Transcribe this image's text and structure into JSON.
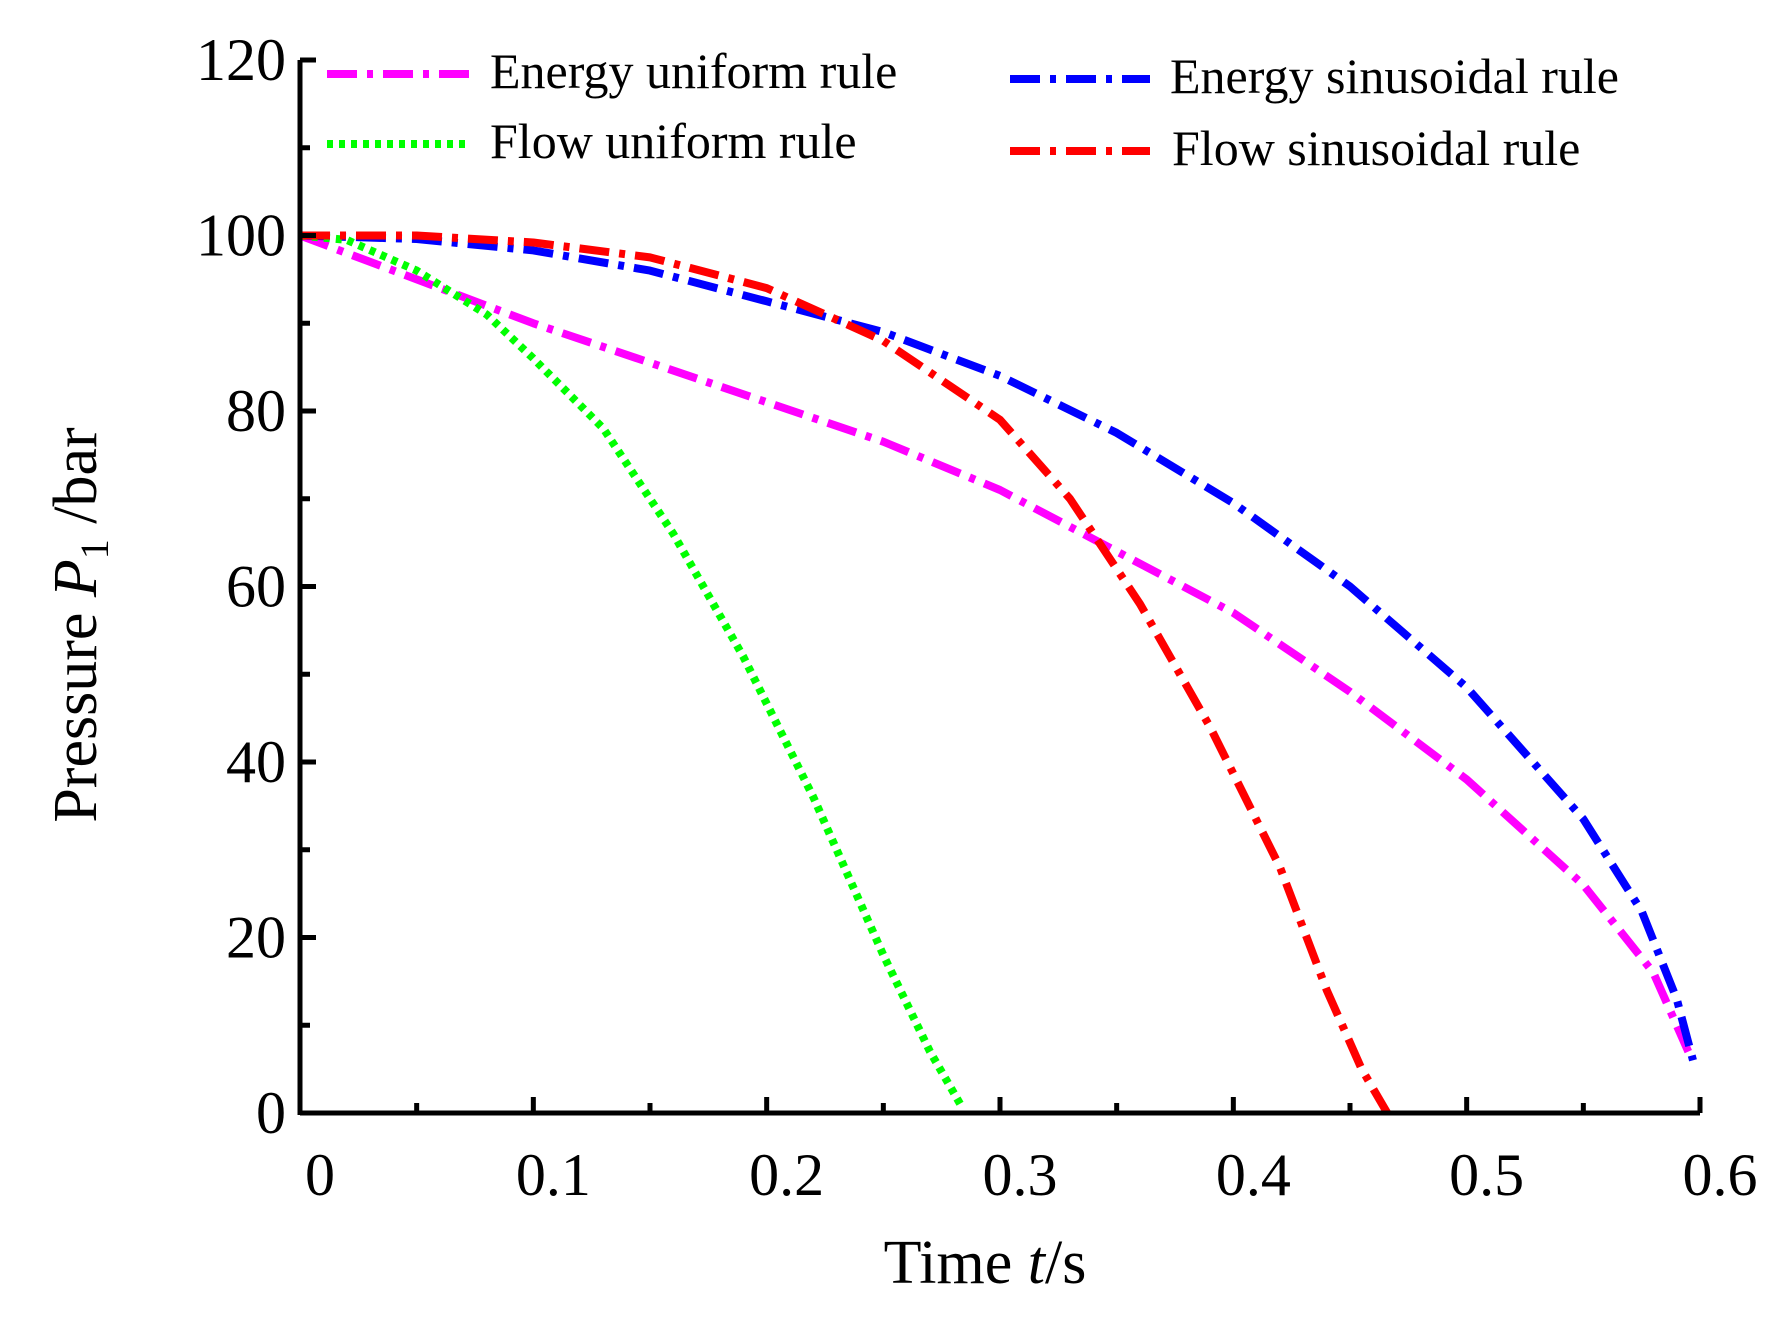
{
  "chart_data": {
    "type": "line",
    "title": "",
    "xlabel": {
      "prefix": "Time ",
      "var": "t",
      "suffix": "/s"
    },
    "ylabel": {
      "prefix": "Pressure ",
      "var": "P",
      "sub": "1",
      "suffix": " /bar"
    },
    "xlim": [
      0,
      0.6
    ],
    "ylim": [
      0,
      120
    ],
    "xticks": [
      0,
      0.1,
      0.2,
      0.3,
      0.4,
      0.5,
      0.6
    ],
    "xtick_labels": [
      "0",
      "0.1",
      "0.2",
      "0.3",
      "0.4",
      "0.5",
      "0.6"
    ],
    "yticks": [
      0,
      20,
      40,
      60,
      80,
      100,
      120
    ],
    "ytick_labels": [
      "0",
      "20",
      "40",
      "60",
      "80",
      "100",
      "120"
    ],
    "x_minor_step": 0.05,
    "y_minor_step": 10,
    "grid": false,
    "legend_position": "top",
    "series": [
      {
        "name": "Energy uniform rule",
        "color": "#ff00ff",
        "dash": "dashdot",
        "x": [
          0,
          0.05,
          0.1,
          0.15,
          0.2,
          0.25,
          0.3,
          0.35,
          0.4,
          0.45,
          0.5,
          0.55,
          0.58,
          0.595
        ],
        "y": [
          100,
          95,
          90,
          85.5,
          81,
          76.5,
          71,
          64,
          57,
          48,
          38,
          26,
          16,
          7
        ]
      },
      {
        "name": "Energy sinusoidal rule",
        "color": "#0000ff",
        "dash": "dashdot",
        "x": [
          0,
          0.05,
          0.1,
          0.15,
          0.2,
          0.25,
          0.3,
          0.35,
          0.4,
          0.45,
          0.5,
          0.55,
          0.575,
          0.59,
          0.597
        ],
        "y": [
          100,
          99.6,
          98.3,
          96,
          92.5,
          89,
          84,
          77.5,
          69.5,
          60,
          48.5,
          33.5,
          23,
          13,
          6
        ]
      },
      {
        "name": "Flow uniform rule",
        "color": "#00ff00",
        "dash": "dot",
        "x": [
          0,
          0.02,
          0.05,
          0.08,
          0.1,
          0.13,
          0.16,
          0.19,
          0.22,
          0.25,
          0.27,
          0.283
        ],
        "y": [
          100,
          99.5,
          96,
          91,
          86,
          78,
          66,
          52,
          36,
          18,
          7,
          1
        ]
      },
      {
        "name": "Flow sinusoidal rule",
        "color": "#ff0000",
        "dash": "dashdot",
        "x": [
          0,
          0.05,
          0.1,
          0.15,
          0.2,
          0.25,
          0.3,
          0.33,
          0.36,
          0.39,
          0.42,
          0.44,
          0.455,
          0.466
        ],
        "y": [
          100,
          100,
          99.2,
          97.5,
          94,
          88,
          79,
          70,
          58,
          44,
          28,
          14,
          5,
          0
        ]
      }
    ]
  }
}
